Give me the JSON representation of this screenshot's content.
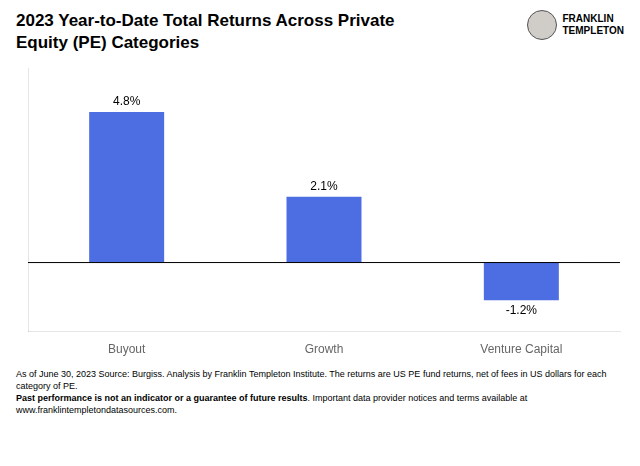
{
  "chart_data": {
    "type": "bar",
    "title": [
      "2023 Year-to-Date Total Returns Across Private",
      "Equity (PE) Categories"
    ],
    "categories": [
      "Buyout",
      "Growth",
      "Venture Capital"
    ],
    "values": [
      4.8,
      2.1,
      -1.2
    ],
    "value_labels": [
      "4.8%",
      "2.1%",
      "-1.2%"
    ],
    "data_labels": true,
    "color": "#4d6de3",
    "ylim": [
      -2.2,
      6.2
    ],
    "grid": false,
    "tick_labels": "x",
    "annotations": [
      "FRANKLIN",
      "TEMPLETON"
    ],
    "footnote": [
      "As of June 30, 2023 Source: Burgiss. Analysis by Franklin Templeton Institute. The returns are US PE fund returns, net of fees in US dollars for each category of PE.",
      "Past performance is not an indicator or a guarantee of future results",
      ". Important data provider notices and terms available at",
      "www.franklintempletondatasources.com."
    ]
  }
}
